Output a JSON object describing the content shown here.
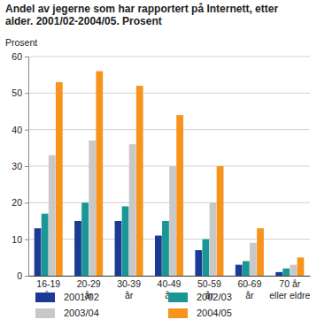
{
  "chart_data": {
    "type": "bar",
    "title": "Andel av jegerne som har rapportert på Internett, etter alder. 2001/02-2004/05. Prosent",
    "y_label": "Prosent",
    "categories": [
      "16-19 år",
      "20-29 år",
      "30-39 år",
      "40-49 år",
      "50-59 år",
      "60-69 år",
      "70 år eller eldre"
    ],
    "series": [
      {
        "name": "2001/02",
        "color": "#1a3a94",
        "values": [
          13,
          15,
          15,
          11,
          7,
          3,
          1
        ]
      },
      {
        "name": "2002/03",
        "color": "#1b9696",
        "values": [
          17,
          20,
          19,
          15,
          10,
          4,
          2
        ]
      },
      {
        "name": "2003/04",
        "color": "#c8c8c8",
        "values": [
          33,
          37,
          36,
          30,
          20,
          9,
          3
        ]
      },
      {
        "name": "2004/05",
        "color": "#f7941d",
        "values": [
          53,
          56,
          52,
          44,
          30,
          13,
          5
        ]
      }
    ],
    "ylim": [
      0,
      60
    ],
    "yticks": [
      0,
      10,
      20,
      30,
      40,
      50,
      60
    ],
    "grid": true,
    "legend": "bottom"
  }
}
